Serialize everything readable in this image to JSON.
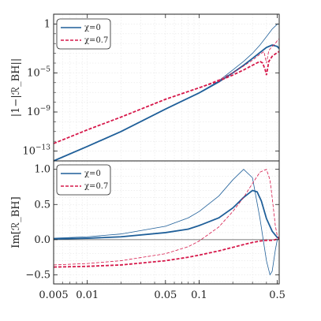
{
  "chart_data": [
    {
      "type": "line",
      "ylabel": "|1−|ℛ_BH||",
      "yscale": "log",
      "xscale": "log",
      "xlim": [
        0.005,
        0.52
      ],
      "ylim": [
        1e-14,
        10
      ],
      "y_tick_labels": [
        "1",
        "10−5",
        "10−9",
        "10−13"
      ],
      "grid": true,
      "legend_position": "upper-left",
      "legend": [
        "χ=0",
        "χ=0.7"
      ],
      "colors": {
        "chi0": "#1f5f99",
        "chi07": "#d6184a"
      },
      "series": [
        {
          "name": "χ=0",
          "style": "thin-solid",
          "x": [
            0.005,
            0.01,
            0.02,
            0.05,
            0.1,
            0.15,
            0.2,
            0.25,
            0.3,
            0.35,
            0.4,
            0.45,
            0.5,
            0.52
          ],
          "y": [
            1e-14,
            3e-13,
            1e-11,
            2e-09,
            9e-08,
            1.5e-06,
            2e-05,
            0.00015,
            0.001,
            0.007,
            0.05,
            0.3,
            0.95,
            1.0
          ]
        },
        {
          "name": "χ=0",
          "style": "thick-solid",
          "x": [
            0.005,
            0.01,
            0.02,
            0.05,
            0.1,
            0.15,
            0.2,
            0.25,
            0.3,
            0.35,
            0.4,
            0.45,
            0.5,
            0.52
          ],
          "y": [
            1e-14,
            3e-13,
            1e-11,
            2e-09,
            9e-08,
            1.2e-06,
            1e-05,
            6e-05,
            0.0003,
            0.0012,
            0.004,
            0.007,
            0.005,
            0.003
          ]
        },
        {
          "name": "χ=0.7",
          "style": "thin-dashed",
          "x": [
            0.005,
            0.01,
            0.02,
            0.05,
            0.1,
            0.15,
            0.2,
            0.25,
            0.3,
            0.35,
            0.38,
            0.4,
            0.42,
            0.45,
            0.48,
            0.5,
            0.52
          ],
          "y": [
            6e-13,
            1.5e-11,
            3e-10,
            2e-08,
            3e-07,
            2e-06,
            1e-05,
            5e-05,
            0.0002,
            0.0008,
            0.0015,
            0.0001,
            0.002,
            0.005,
            0.01,
            0.02,
            0.03
          ]
        },
        {
          "name": "χ=0.7",
          "style": "thick-dashed",
          "x": [
            0.005,
            0.01,
            0.02,
            0.05,
            0.1,
            0.15,
            0.2,
            0.25,
            0.3,
            0.35,
            0.37,
            0.39,
            0.4,
            0.42,
            0.45,
            0.5,
            0.52
          ],
          "y": [
            6e-13,
            1.5e-11,
            3e-10,
            2e-08,
            3e-07,
            1.5e-06,
            6e-06,
            2e-05,
            6e-05,
            0.00015,
            0.0001,
            2e-05,
            6e-06,
            0.00015,
            0.0005,
            0.0012,
            0.0015
          ]
        }
      ]
    },
    {
      "type": "line",
      "ylabel": "Im[ℛ_BH]",
      "xscale": "log",
      "xlim": [
        0.005,
        0.52
      ],
      "ylim": [
        -0.63,
        1.12
      ],
      "y_ticks": [
        -0.5,
        0,
        0.5,
        1
      ],
      "y_tick_labels": [
        "−0.5",
        "0.0",
        "0.5",
        "1.0"
      ],
      "x_ticks": [
        0.005,
        0.01,
        0.05,
        0.1,
        0.5
      ],
      "x_tick_labels": [
        "0.005",
        "0.01",
        "0.05",
        "0.1",
        "0.5"
      ],
      "grid": true,
      "zero_line": true,
      "legend_position": "upper-left",
      "legend": [
        "χ=0",
        "χ=0.7"
      ],
      "colors": {
        "chi0": "#1f5f99",
        "chi07": "#d6184a"
      },
      "series": [
        {
          "name": "χ=0",
          "style": "thin-solid",
          "x": [
            0.005,
            0.01,
            0.02,
            0.05,
            0.08,
            0.1,
            0.15,
            0.2,
            0.25,
            0.3,
            0.35,
            0.4,
            0.43,
            0.45,
            0.48,
            0.5,
            0.52
          ],
          "y": [
            0.02,
            0.04,
            0.08,
            0.19,
            0.31,
            0.4,
            0.62,
            0.85,
            1.0,
            0.88,
            0.3,
            -0.3,
            -0.5,
            -0.45,
            -0.15,
            0.0,
            0.02
          ]
        },
        {
          "name": "χ=0",
          "style": "thick-solid",
          "x": [
            0.005,
            0.01,
            0.02,
            0.05,
            0.08,
            0.1,
            0.15,
            0.2,
            0.25,
            0.3,
            0.33,
            0.36,
            0.4,
            0.45,
            0.5,
            0.52
          ],
          "y": [
            0.01,
            0.02,
            0.04,
            0.1,
            0.15,
            0.2,
            0.31,
            0.45,
            0.6,
            0.7,
            0.68,
            0.55,
            0.3,
            0.12,
            0.03,
            0.02
          ]
        },
        {
          "name": "χ=0.7",
          "style": "thin-dashed",
          "x": [
            0.005,
            0.01,
            0.02,
            0.05,
            0.08,
            0.1,
            0.15,
            0.2,
            0.25,
            0.3,
            0.35,
            0.4,
            0.43,
            0.45,
            0.48,
            0.5,
            0.52
          ],
          "y": [
            -0.36,
            -0.34,
            -0.3,
            -0.2,
            -0.1,
            -0.02,
            0.18,
            0.4,
            0.6,
            0.8,
            0.96,
            1.0,
            0.85,
            0.6,
            0.2,
            0.05,
            0.02
          ]
        },
        {
          "name": "χ=0.7",
          "style": "thick-dashed",
          "x": [
            0.005,
            0.01,
            0.02,
            0.05,
            0.08,
            0.1,
            0.15,
            0.2,
            0.25,
            0.3,
            0.35,
            0.4,
            0.45,
            0.48,
            0.5,
            0.52
          ],
          "y": [
            -0.39,
            -0.38,
            -0.36,
            -0.3,
            -0.25,
            -0.22,
            -0.16,
            -0.11,
            -0.07,
            -0.04,
            -0.02,
            -0.01,
            -0.01,
            0.0,
            0.01,
            0.02
          ]
        }
      ]
    }
  ]
}
